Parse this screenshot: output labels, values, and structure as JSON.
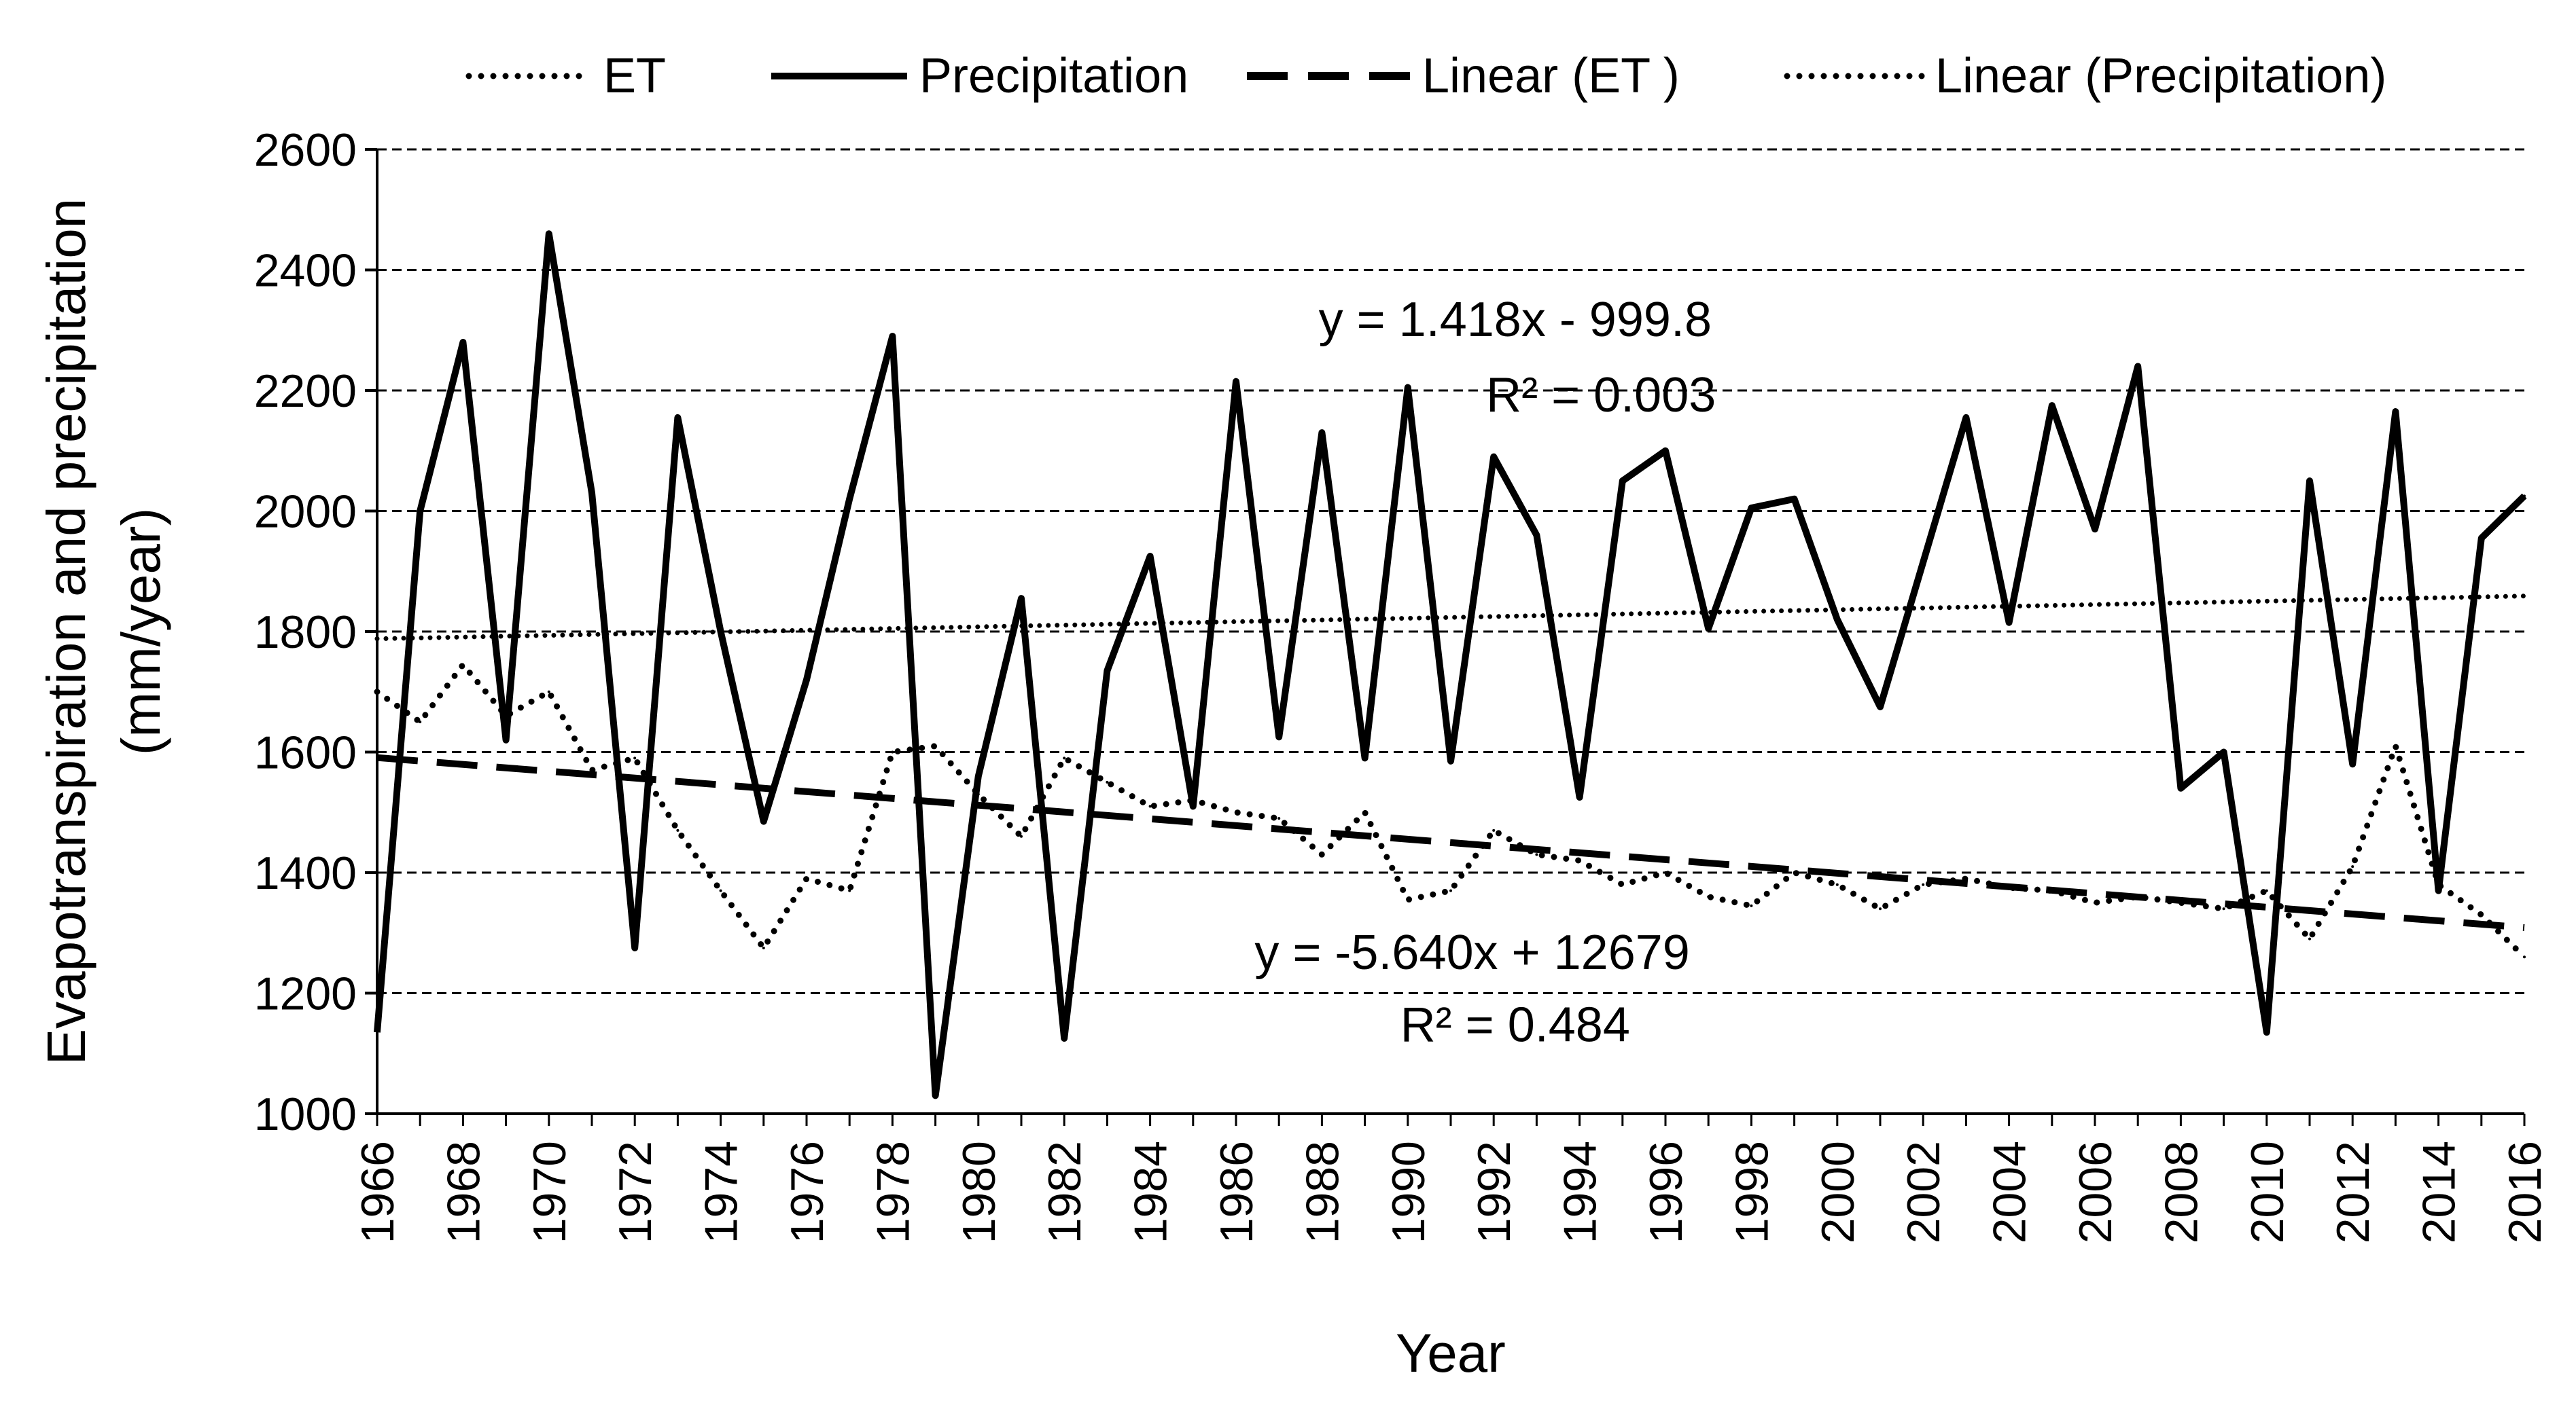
{
  "chart_data": {
    "type": "line",
    "title": "",
    "xlabel": "Year",
    "ylabel_line1": "Evapotranspiration and precipitation",
    "ylabel_line2": "(mm/year)",
    "xlim": [
      1966,
      2016
    ],
    "ylim": [
      1000,
      2600
    ],
    "y_ticks": [
      1000,
      1200,
      1400,
      1600,
      1800,
      2000,
      2200,
      2400,
      2600
    ],
    "x_ticks": [
      1966,
      1968,
      1970,
      1972,
      1974,
      1976,
      1978,
      1980,
      1982,
      1984,
      1986,
      1988,
      1990,
      1992,
      1994,
      1996,
      1998,
      2000,
      2002,
      2004,
      2006,
      2008,
      2010,
      2012,
      2014,
      2016
    ],
    "grid": "horizontal dashed",
    "legend": {
      "position": "top",
      "entries": [
        "ET",
        "Precipitation",
        "Linear (ET )",
        "Linear (Precipitation)"
      ]
    },
    "x": [
      1966,
      1967,
      1968,
      1969,
      1970,
      1971,
      1972,
      1973,
      1974,
      1975,
      1976,
      1977,
      1978,
      1979,
      1980,
      1981,
      1982,
      1983,
      1984,
      1985,
      1986,
      1987,
      1988,
      1989,
      1990,
      1991,
      1992,
      1993,
      1994,
      1995,
      1996,
      1997,
      1998,
      1999,
      2000,
      2001,
      2002,
      2003,
      2004,
      2005,
      2006,
      2007,
      2008,
      2009,
      2010,
      2011,
      2012,
      2013,
      2014,
      2015,
      2016
    ],
    "series": [
      {
        "name": "ET",
        "style": "dotted",
        "values": [
          1700,
          1650,
          1745,
          1660,
          1700,
          1570,
          1590,
          1470,
          1370,
          1275,
          1390,
          1370,
          1600,
          1610,
          1530,
          1460,
          1590,
          1550,
          1510,
          1520,
          1500,
          1490,
          1430,
          1500,
          1355,
          1370,
          1470,
          1430,
          1420,
          1380,
          1400,
          1360,
          1345,
          1400,
          1380,
          1340,
          1380,
          1390,
          1375,
          1370,
          1350,
          1360,
          1350,
          1340,
          1370,
          1290,
          1410,
          1610,
          1380,
          1330,
          1260
        ]
      },
      {
        "name": "Precipitation",
        "style": "solid",
        "values": [
          1135,
          2000,
          2280,
          1620,
          2460,
          2030,
          1275,
          2155,
          1800,
          1485,
          1720,
          2020,
          2290,
          1030,
          1560,
          1855,
          1125,
          1735,
          1925,
          1510,
          2215,
          1625,
          2130,
          1590,
          2205,
          1585,
          2090,
          1960,
          1525,
          2050,
          2100,
          1805,
          2005,
          2020,
          1820,
          1675,
          1915,
          2155,
          1815,
          2175,
          1970,
          2240,
          1540,
          1600,
          1135,
          2050,
          1580,
          2165,
          1370,
          1955,
          2025
        ]
      },
      {
        "name": "Linear (ET )",
        "style": "dashed",
        "equation": "y = -5.640x + 12679",
        "r2": "R² = 0.484",
        "slope": -5.64,
        "intercept": 12679
      },
      {
        "name": "Linear (Precipitation)",
        "style": "dotted",
        "equation": "y = 1.418x - 999.8",
        "r2": "R² = 0.003",
        "slope": 1.418,
        "intercept": -999.8
      }
    ],
    "annotations": [
      {
        "text": "y = 1.418x - 999.8",
        "x": 1992.5,
        "y": 2290
      },
      {
        "text": "R² = 0.003",
        "x": 1994.5,
        "y": 2165
      },
      {
        "text": "y = -5.640x + 12679",
        "x": 1991.5,
        "y": 1240
      },
      {
        "text": "R² = 0.484",
        "x": 1992.5,
        "y": 1120
      }
    ]
  }
}
